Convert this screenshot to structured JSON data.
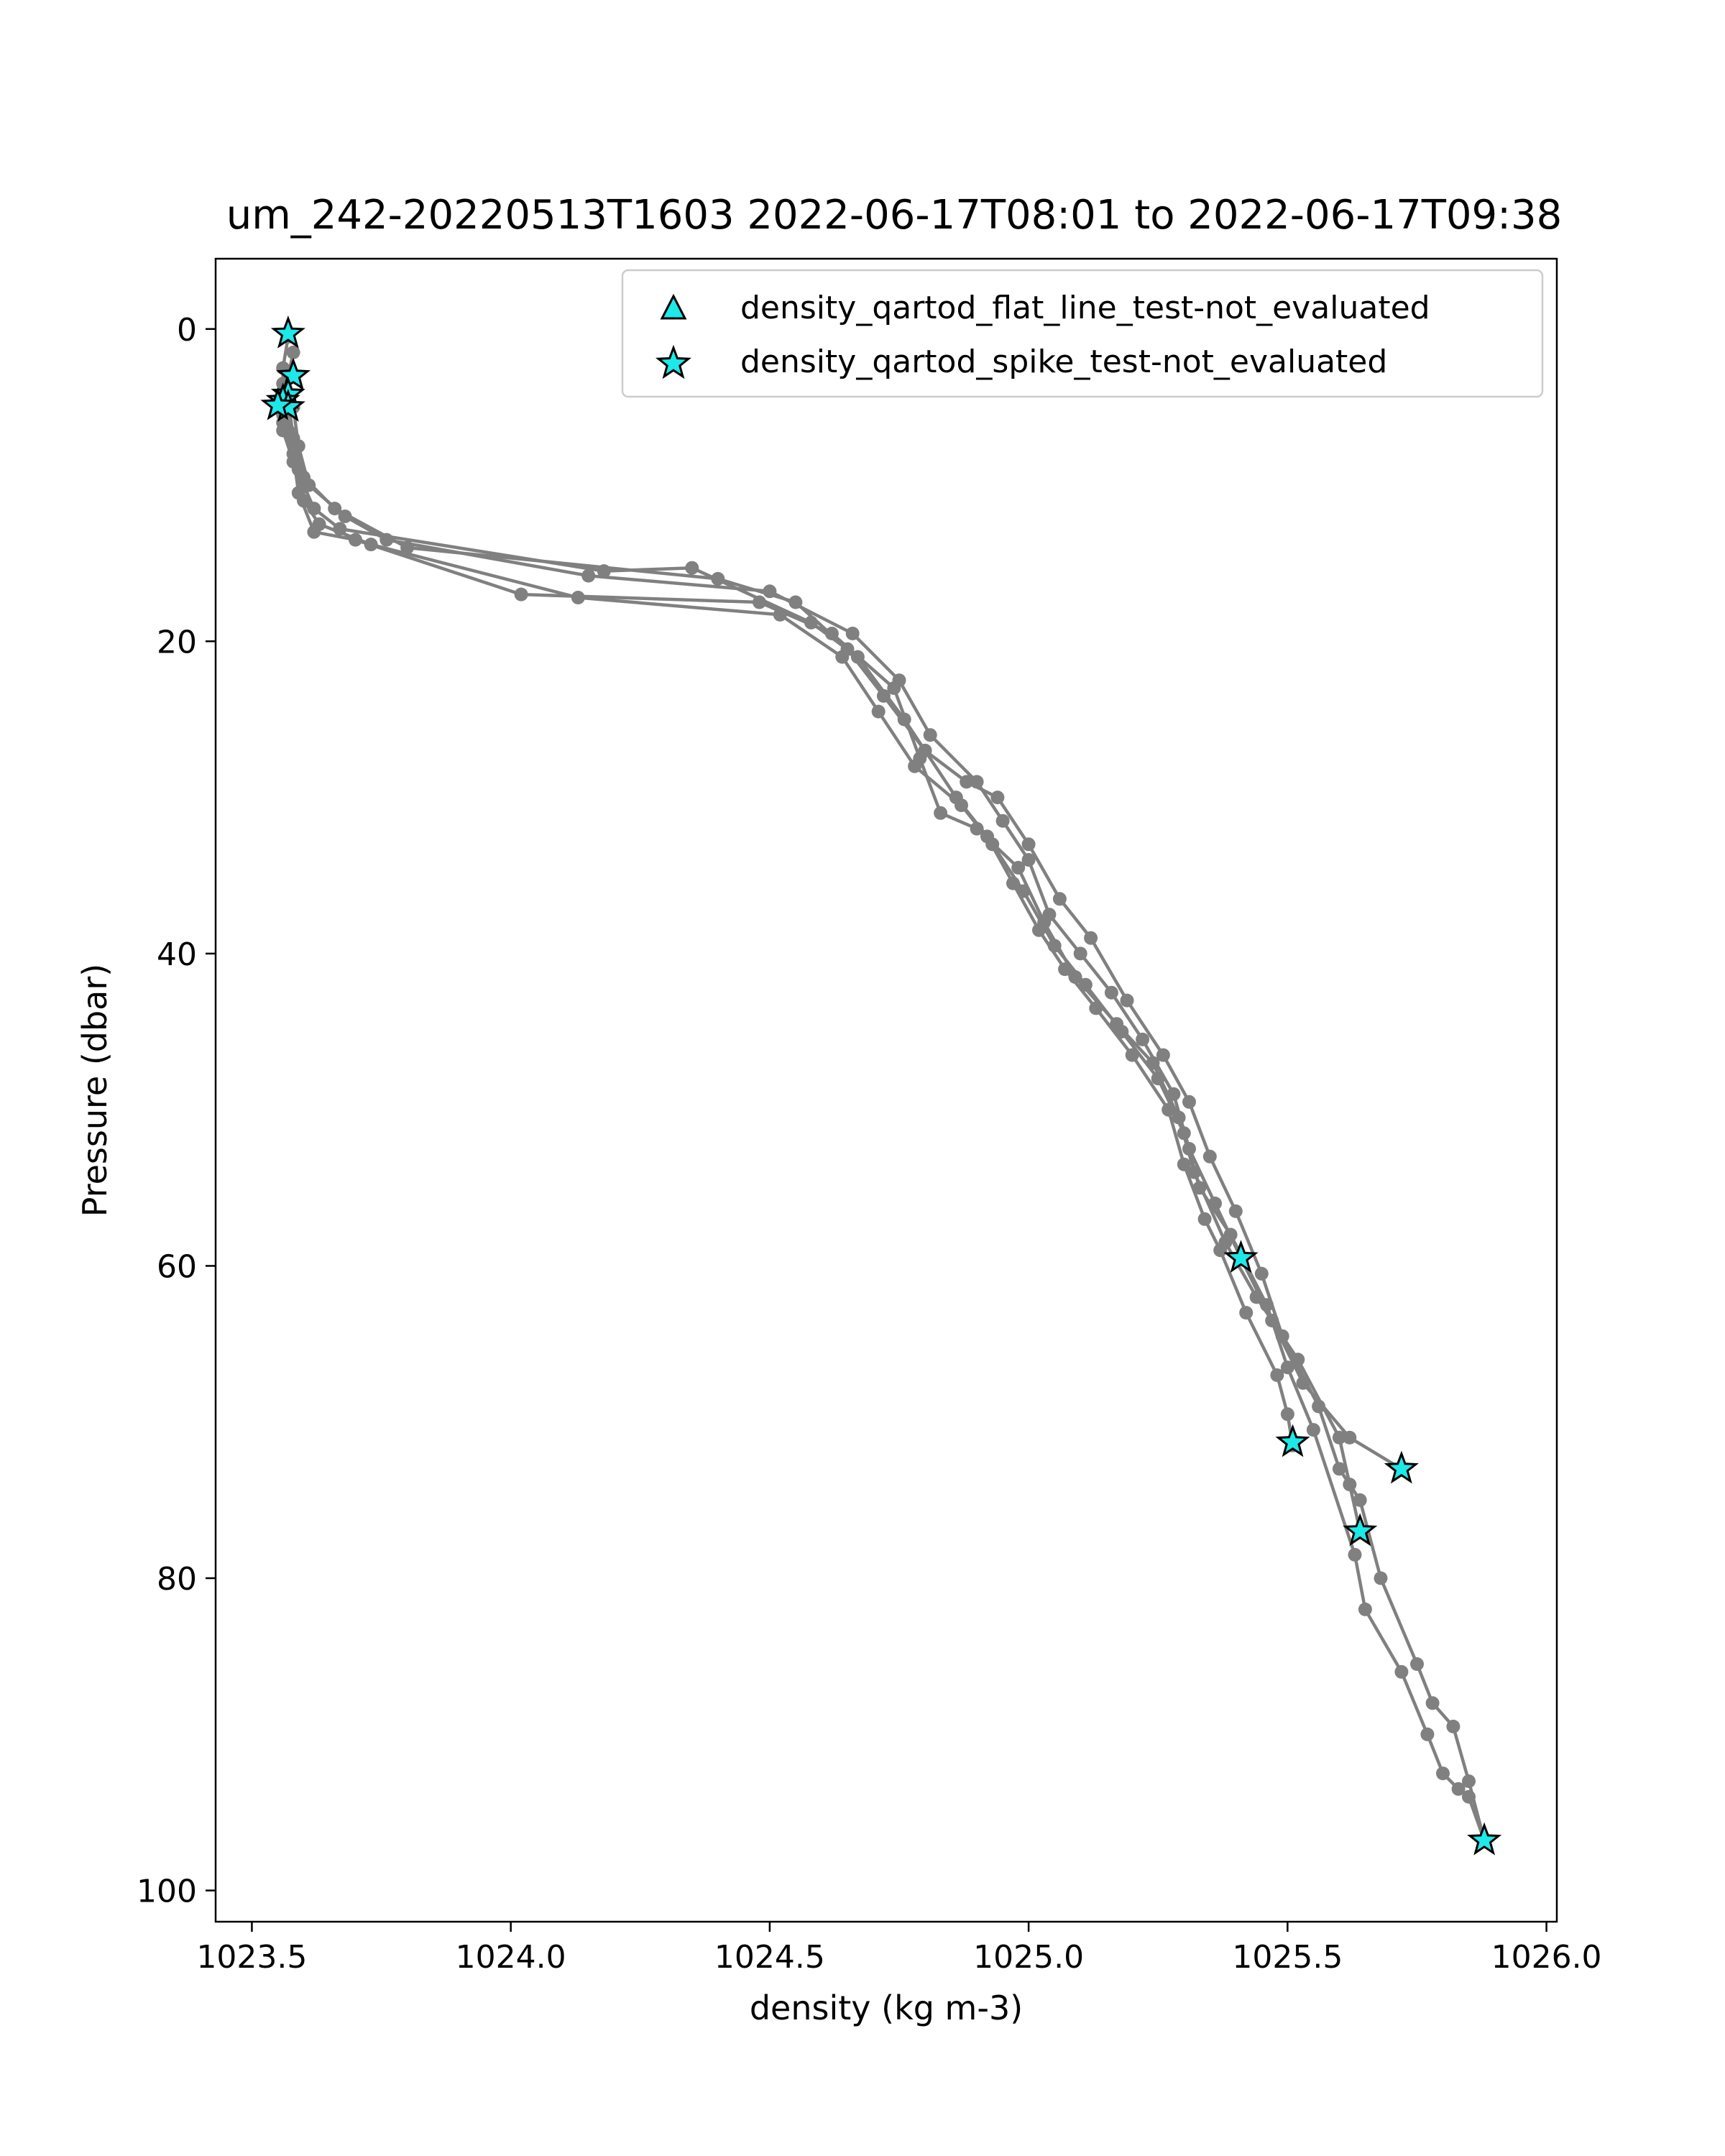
{
  "chart_data": {
    "type": "scatter",
    "title": "um_242-20220513T1603 2022-06-17T08:01 to 2022-06-17T09:38",
    "xlabel": "density (kg m-3)",
    "ylabel": "Pressure (dbar)",
    "xlim": [
      1023.43,
      1026.02
    ],
    "ylim": [
      102,
      -4.5
    ],
    "y_inverted": true,
    "grid": false,
    "legend_position": "top-right",
    "x_ticks": [
      1023.5,
      1024.0,
      1024.5,
      1025.0,
      1025.5,
      1026.0
    ],
    "x_tick_labels": [
      "1023.5",
      "1024.0",
      "1024.5",
      "1025.0",
      "1025.5",
      "1026.0"
    ],
    "y_ticks": [
      0,
      20,
      40,
      60,
      80,
      100
    ],
    "y_tick_labels": [
      "0",
      "20",
      "40",
      "60",
      "80",
      "100"
    ],
    "colors": {
      "profile_line": "#808080",
      "marker_fill": "#1de9e9",
      "marker_edge": "#000000"
    },
    "profiles": [
      {
        "x": [
          1023.57,
          1023.56,
          1023.57,
          1023.58,
          1023.6,
          1023.66,
          1023.8,
          1024.4,
          1024.55,
          1024.65,
          1024.72,
          1024.8,
          1024.86,
          1024.92,
          1024.97,
          1025.02,
          1025.07,
          1025.13,
          1025.2,
          1025.27,
          1025.3,
          1025.34,
          1025.37,
          1025.42,
          1025.48,
          1025.5,
          1025.51
        ],
        "y": [
          0.5,
          2.5,
          4.5,
          7.0,
          9.5,
          11.5,
          14.0,
          16.0,
          17.5,
          20.5,
          23.5,
          27.0,
          30.0,
          32.5,
          35.5,
          38.5,
          41.0,
          43.5,
          46.5,
          50.0,
          53.5,
          57.0,
          59.0,
          63.0,
          67.0,
          69.5,
          71.5
        ]
      },
      {
        "x": [
          1023.58,
          1023.57,
          1023.58,
          1023.59,
          1023.61,
          1023.68,
          1023.76,
          1024.15,
          1024.5,
          1024.66,
          1024.75,
          1024.81,
          1024.9,
          1024.95,
          1025.0,
          1025.04,
          1025.1,
          1025.16,
          1025.22,
          1025.28,
          1025.31,
          1025.36,
          1025.41,
          1025.47,
          1025.53,
          1025.62,
          1025.72
        ],
        "y": [
          1.5,
          3.0,
          5.0,
          7.5,
          10.0,
          12.0,
          13.5,
          15.8,
          16.8,
          19.5,
          22.5,
          26.0,
          29.0,
          31.5,
          34.0,
          37.5,
          40.0,
          42.5,
          45.5,
          49.0,
          52.5,
          56.0,
          59.5,
          63.5,
          67.5,
          71.0,
          73.0
        ]
      },
      {
        "x": [
          1023.56,
          1023.55,
          1023.56,
          1023.58,
          1023.59,
          1023.62,
          1023.7,
          1024.02,
          1024.48,
          1024.62,
          1024.74,
          1024.79,
          1024.83,
          1024.9,
          1024.98,
          1025.03,
          1025.09,
          1025.17,
          1025.24,
          1025.29,
          1025.32,
          1025.38,
          1025.44,
          1025.52,
          1025.6,
          1025.62,
          1025.64
        ],
        "y": [
          3.5,
          4.8,
          6.0,
          8.0,
          10.5,
          13.0,
          13.5,
          17.0,
          17.5,
          19.5,
          23.0,
          27.5,
          31.0,
          32.0,
          34.5,
          38.0,
          41.5,
          44.5,
          47.0,
          50.5,
          54.0,
          58.5,
          62.0,
          66.0,
          71.0,
          74.0,
          77.0
        ]
      },
      {
        "x": [
          1023.57,
          1023.56,
          1023.57,
          1023.59,
          1023.6,
          1023.63,
          1023.73,
          1024.13,
          1024.52,
          1024.64,
          1024.71,
          1024.78,
          1024.87,
          1024.93,
          1024.99,
          1025.05,
          1025.11,
          1025.18,
          1025.25,
          1025.3,
          1025.33,
          1025.39,
          1025.46,
          1025.5,
          1025.55,
          1025.63,
          1025.65,
          1025.72,
          1025.77,
          1025.8,
          1025.83,
          1025.85,
          1025.88
        ],
        "y": [
          4.5,
          5.5,
          6.5,
          9.0,
          11.0,
          12.5,
          13.8,
          17.2,
          18.3,
          21.0,
          24.5,
          28.0,
          30.5,
          33.0,
          36.0,
          39.5,
          42.0,
          45.0,
          48.0,
          51.5,
          55.0,
          58.0,
          62.5,
          66.5,
          70.5,
          78.5,
          82.0,
          86.0,
          90.0,
          92.5,
          93.5,
          94.0,
          96.8
        ]
      },
      {
        "x": [
          1023.55,
          1023.56,
          1023.58,
          1023.6,
          1023.62,
          1023.67,
          1024.18,
          1024.35,
          1024.58,
          1024.67,
          1024.76,
          1024.8,
          1024.88,
          1024.94,
          1025.0,
          1025.06,
          1025.12,
          1025.19,
          1025.26,
          1025.31,
          1025.35,
          1025.4,
          1025.45,
          1025.49,
          1025.56,
          1025.6,
          1025.64,
          1025.68,
          1025.75,
          1025.78,
          1025.82,
          1025.85,
          1025.88
        ],
        "y": [
          5.0,
          6.5,
          8.5,
          10.0,
          11.5,
          12.8,
          15.5,
          15.3,
          18.8,
          21.0,
          25.0,
          27.0,
          29.0,
          30.0,
          33.0,
          36.5,
          39.0,
          43.0,
          46.5,
          49.5,
          53.0,
          56.5,
          60.5,
          64.5,
          69.0,
          73.0,
          75.0,
          80.0,
          85.5,
          88.0,
          89.5,
          93.0,
          96.8
        ]
      }
    ],
    "series": [
      {
        "name": "density_qartod_flat_line_test-not_evaluated",
        "marker": "triangle",
        "x": [],
        "y": []
      },
      {
        "name": "density_qartod_spike_test-not_evaluated",
        "marker": "star",
        "x": [
          1023.57,
          1023.58,
          1023.57,
          1023.56,
          1023.57,
          1023.55,
          1025.41,
          1025.51,
          1025.72,
          1025.64,
          1025.88
        ],
        "y": [
          0.3,
          3.0,
          4.2,
          4.6,
          5.0,
          4.9,
          59.5,
          71.3,
          73.0,
          77.0,
          96.8
        ]
      }
    ]
  }
}
